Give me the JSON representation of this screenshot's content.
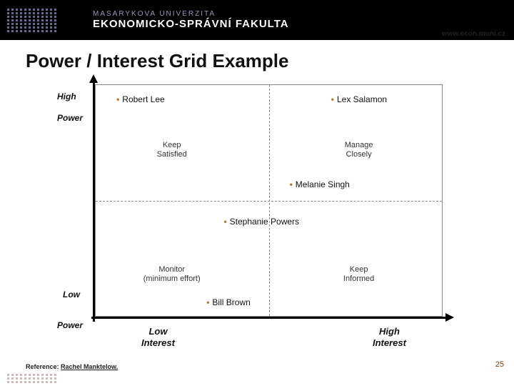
{
  "header": {
    "university": "MASARYKOVA UNIVERZITA",
    "faculty": "EKONOMICKO-SPRÁVNÍ FAKULTA",
    "url": "www.econ.muni.cz"
  },
  "title": "Power / Interest Grid Example",
  "axes": {
    "high_power": "High",
    "power": "Power",
    "low_power": "Low",
    "low_interest_1": "Low",
    "low_interest_2": "Interest",
    "high_interest_1": "High",
    "high_interest_2": "Interest"
  },
  "quadrants": {
    "keep_satisfied": "Keep\nSatisfied",
    "manage_closely": "Manage\nClosely",
    "monitor": "Monitor\n(minimum effort)",
    "keep_informed": "Keep\nInformed"
  },
  "stakeholders": {
    "robert": "Robert Lee",
    "lex": "Lex Salamon",
    "melanie": "Melanie Singh",
    "stephanie": "Stephanie Powers",
    "bill": "Bill Brown"
  },
  "reference": {
    "label": "Reference: ",
    "src": "Rachel Manktelow."
  },
  "page": "25",
  "colors": {
    "bullet": "#a97a2d",
    "header_bg": "#000000",
    "uni_text": "#9a97b8"
  }
}
